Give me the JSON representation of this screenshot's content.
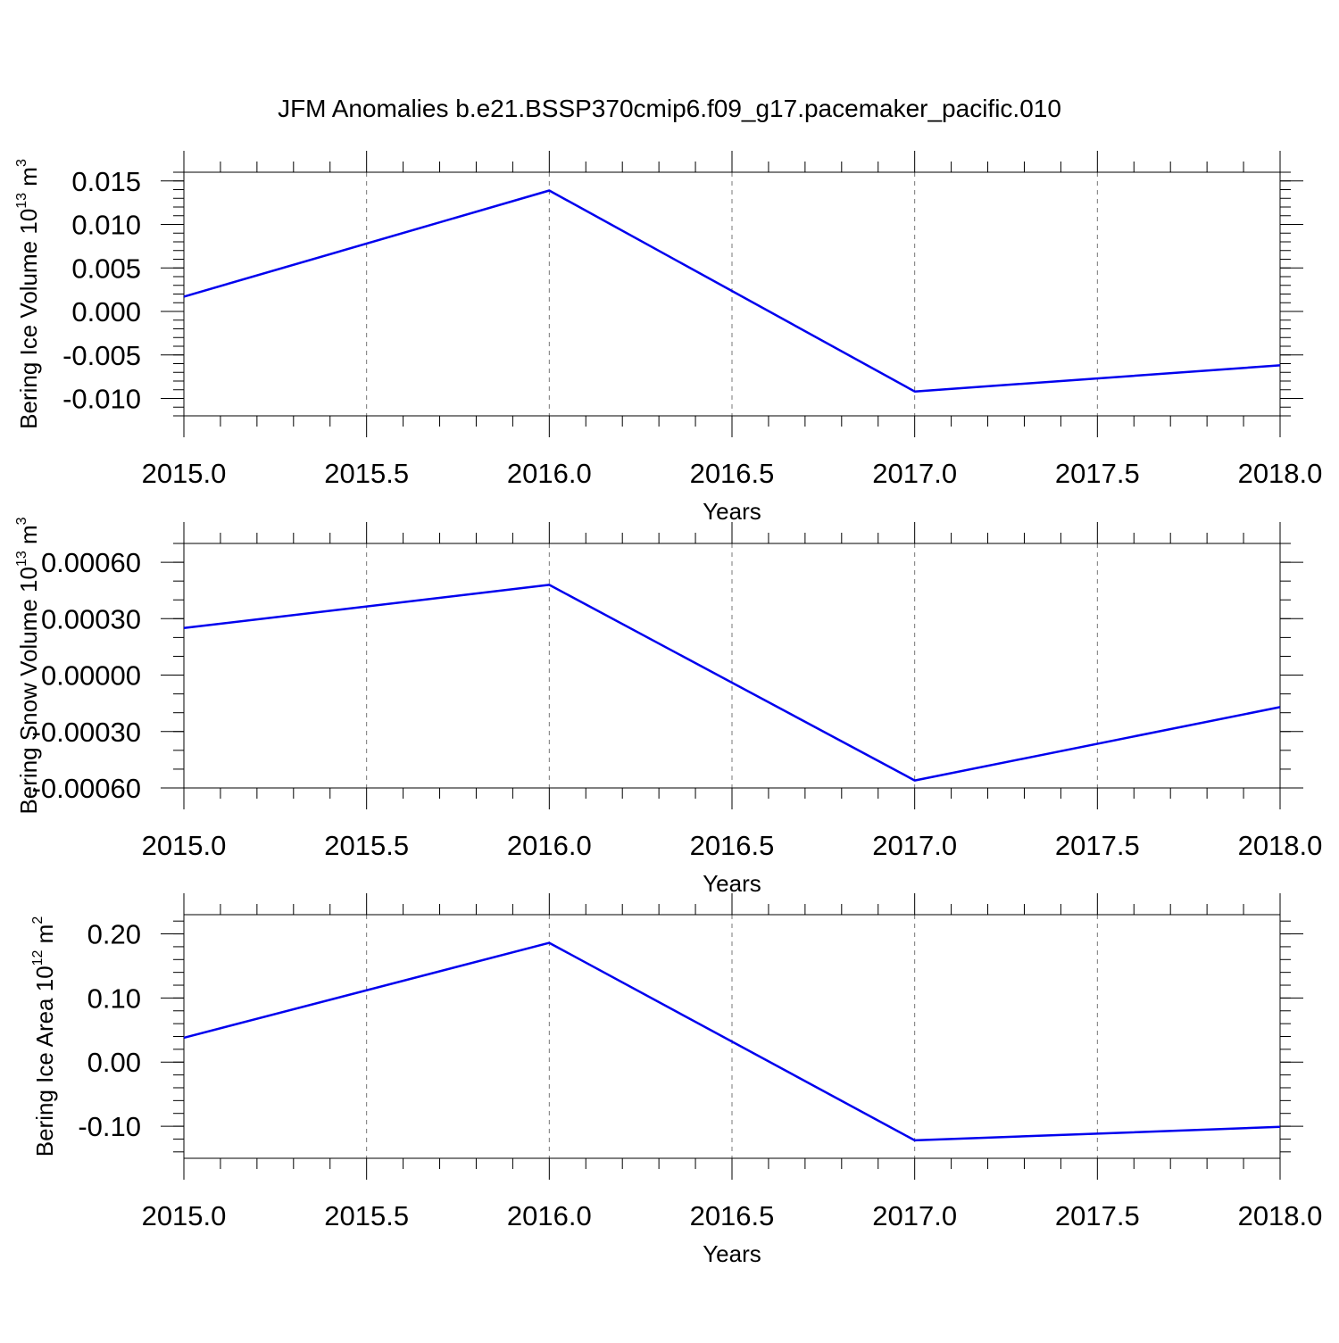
{
  "title": "JFM Anomalies b.e21.BSSP370cmip6.f09_g17.pacemaker_pacific.010",
  "colors": {
    "series": "#0000ee",
    "grid": "#777777",
    "axes": "#000000"
  },
  "chart_data": [
    {
      "type": "line",
      "xlabel": "Years",
      "ylabel": {
        "text": "Bering Ice Volume 10",
        "sup": "13",
        "unit": " m",
        "unit_sup": "3"
      },
      "xlim": [
        2015.0,
        2018.0
      ],
      "ylim": [
        -0.012,
        0.016
      ],
      "xticks": [
        2015.0,
        2015.5,
        2016.0,
        2016.5,
        2017.0,
        2017.5,
        2018.0
      ],
      "xtick_labels": [
        "2015.0",
        "2015.5",
        "2016.0",
        "2016.5",
        "2017.0",
        "2017.5",
        "2018.0"
      ],
      "yticks": [
        -0.01,
        -0.005,
        0.0,
        0.005,
        0.01,
        0.015
      ],
      "ytick_labels": [
        "-0.010",
        "-0.005",
        "0.000",
        "0.005",
        "0.010",
        "0.015"
      ],
      "y_minor_step": 0.001,
      "grid": "x-dashed",
      "series": [
        {
          "x": [
            2015,
            2016,
            2017,
            2018
          ],
          "y": [
            0.0017,
            0.0139,
            -0.0092,
            -0.0062
          ]
        }
      ]
    },
    {
      "type": "line",
      "xlabel": "Years",
      "ylabel": {
        "text": "Bering Snow Volume 10",
        "sup": "13",
        "unit": " m",
        "unit_sup": "3"
      },
      "xlim": [
        2015.0,
        2018.0
      ],
      "ylim": [
        -0.0006,
        0.0007
      ],
      "xticks": [
        2015.0,
        2015.5,
        2016.0,
        2016.5,
        2017.0,
        2017.5,
        2018.0
      ],
      "xtick_labels": [
        "2015.0",
        "2015.5",
        "2016.0",
        "2016.5",
        "2017.0",
        "2017.5",
        "2018.0"
      ],
      "yticks": [
        -0.0006,
        -0.0003,
        0.0,
        0.0003,
        0.0006
      ],
      "ytick_labels": [
        "-0.00060",
        "-0.00030",
        "0.00000",
        "0.00030",
        "0.00060"
      ],
      "y_minor_step": 0.0001,
      "grid": "x-dashed",
      "series": [
        {
          "x": [
            2015,
            2016,
            2017,
            2018
          ],
          "y": [
            0.00025,
            0.00048,
            -0.00056,
            -0.00017
          ]
        }
      ]
    },
    {
      "type": "line",
      "xlabel": "Years",
      "ylabel": {
        "text": "Bering Ice Area 10",
        "sup": "12",
        "unit": " m",
        "unit_sup": "2"
      },
      "xlim": [
        2015.0,
        2018.0
      ],
      "ylim": [
        -0.15,
        0.23
      ],
      "xticks": [
        2015.0,
        2015.5,
        2016.0,
        2016.5,
        2017.0,
        2017.5,
        2018.0
      ],
      "xtick_labels": [
        "2015.0",
        "2015.5",
        "2016.0",
        "2016.5",
        "2017.0",
        "2017.5",
        "2018.0"
      ],
      "yticks": [
        -0.1,
        0.0,
        0.1,
        0.2
      ],
      "ytick_labels": [
        "-0.10",
        "0.00",
        "0.10",
        "0.20"
      ],
      "y_minor_step": 0.02,
      "grid": "x-dashed",
      "series": [
        {
          "x": [
            2015,
            2016,
            2017,
            2018
          ],
          "y": [
            0.038,
            0.186,
            -0.122,
            -0.101
          ]
        }
      ]
    }
  ]
}
